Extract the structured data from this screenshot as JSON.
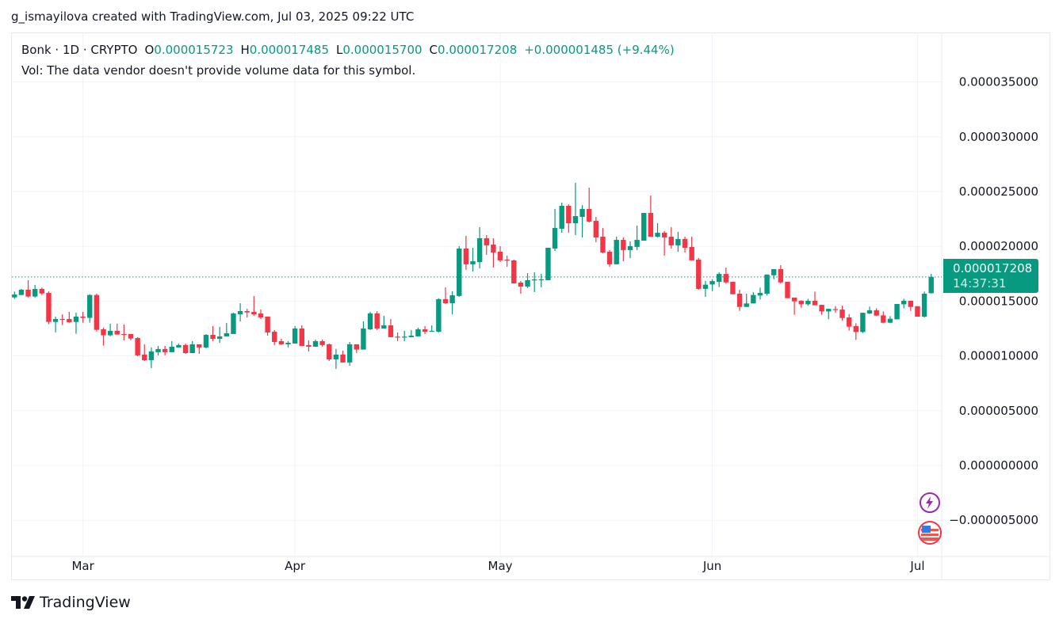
{
  "credit": "g_ismayilova created with TradingView.com, Jul 03, 2025 09:22 UTC",
  "legend": {
    "symbol": "Bonk · 1D · CRYPTO",
    "o_label": "O",
    "o": "0.000015723",
    "h_label": "H",
    "h": "0.000017485",
    "l_label": "L",
    "l": "0.000015700",
    "c_label": "C",
    "c": "0.000017208",
    "change": "+0.000001485 (+9.44%)",
    "vol": "Vol: The data vendor doesn't provide volume data for this symbol."
  },
  "price_label": {
    "price": "0.000017208",
    "countdown": "14:37:31"
  },
  "brand": "TradingView",
  "icons": [
    "lightning-icon",
    "us-flag-icon"
  ],
  "colors": {
    "up": "#089981",
    "down": "#f23645",
    "grid": "#f0f3fa",
    "last_line": "#089981"
  },
  "chart_data": {
    "type": "candlestick",
    "title": "Bonk · 1D · CRYPTO",
    "ylim": [
      -8e-06,
      3.9e-05
    ],
    "grid": true,
    "y_ticks": [
      {
        "value": 3.5e-05,
        "label": "0.000035000"
      },
      {
        "value": 3e-05,
        "label": "0.000030000"
      },
      {
        "value": 2.5e-05,
        "label": "0.000025000"
      },
      {
        "value": 2e-05,
        "label": "0.000020000"
      },
      {
        "value": 1.5e-05,
        "label": "0.000015000"
      },
      {
        "value": 1e-05,
        "label": "0.000010000"
      },
      {
        "value": 5e-06,
        "label": "0.000005000"
      },
      {
        "value": 0,
        "label": "0.000000000"
      },
      {
        "value": -5e-06,
        "label": "−0.000005000"
      }
    ],
    "x_ticks": [
      {
        "label": "Mar",
        "index": 10
      },
      {
        "label": "Apr",
        "index": 41
      },
      {
        "label": "May",
        "index": 71
      },
      {
        "label": "Jun",
        "index": 102
      },
      {
        "label": "Jul",
        "index": 132
      }
    ],
    "last_price": 1.7208e-05,
    "candles_ohlc": [
      [
        1.534e-05,
        1.587e-05,
        1.52e-05,
        1.561e-05
      ],
      [
        1.556e-05,
        1.611e-05,
        1.556e-05,
        1.604e-05
      ],
      [
        1.604e-05,
        1.691e-05,
        1.534e-05,
        1.542e-05
      ],
      [
        1.542e-05,
        1.648e-05,
        1.534e-05,
        1.611e-05
      ],
      [
        1.611e-05,
        1.623e-05,
        1.556e-05,
        1.57e-05
      ],
      [
        1.575e-05,
        1.59e-05,
        1.289e-05,
        1.31e-05
      ],
      [
        1.31e-05,
        1.359e-05,
        1.214e-05,
        1.337e-05
      ],
      [
        1.337e-05,
        1.38e-05,
        1.282e-05,
        1.335e-05
      ],
      [
        1.337e-05,
        1.402e-05,
        1.303e-05,
        1.308e-05
      ],
      [
        1.31e-05,
        1.395e-05,
        1.202e-05,
        1.359e-05
      ],
      [
        1.359e-05,
        1.402e-05,
        1.303e-05,
        1.347e-05
      ],
      [
        1.347e-05,
        1.563e-05,
        1.303e-05,
        1.556e-05
      ],
      [
        1.556e-05,
        1.568e-05,
        1.224e-05,
        1.238e-05
      ],
      [
        1.243e-05,
        1.257e-05,
        1.094e-05,
        1.188e-05
      ],
      [
        1.188e-05,
        1.294e-05,
        1.18e-05,
        1.229e-05
      ],
      [
        1.229e-05,
        1.294e-05,
        1.195e-05,
        1.195e-05
      ],
      [
        1.2e-05,
        1.286e-05,
        1.142e-05,
        1.197e-05
      ],
      [
        1.2e-05,
        1.2e-05,
        1.142e-05,
        1.159e-05
      ],
      [
        1.163e-05,
        1.171e-05,
        9.97e-06,
        1.005e-05
      ],
      [
        1.012e-05,
        1.106e-05,
        9.54e-06,
        9.61e-06
      ],
      [
        9.61e-06,
        1.077e-05,
        8.89e-06,
        1.041e-05
      ],
      [
        1.034e-05,
        1.091e-05,
        1.005e-05,
        1.063e-05
      ],
      [
        1.063e-05,
        1.091e-05,
        1.005e-05,
        1.034e-05
      ],
      [
        1.034e-05,
        1.135e-05,
        1.034e-05,
        1.084e-05
      ],
      [
        1.077e-05,
        1.113e-05,
        1.077e-05,
        1.099e-05
      ],
      [
        1.099e-05,
        1.113e-05,
        1.019e-05,
        1.026e-05
      ],
      [
        1.026e-05,
        1.135e-05,
        1.026e-05,
        1.106e-05
      ],
      [
        1.106e-05,
        1.106e-05,
        1.019e-05,
        1.077e-05
      ],
      [
        1.077e-05,
        1.199e-05,
        1.07e-05,
        1.192e-05
      ],
      [
        1.192e-05,
        1.272e-05,
        1.135e-05,
        1.156e-05
      ],
      [
        1.156e-05,
        1.265e-05,
        1.12e-05,
        1.178e-05
      ],
      [
        1.178e-05,
        1.301e-05,
        1.178e-05,
        1.207e-05
      ],
      [
        1.2e-05,
        1.395e-05,
        1.2e-05,
        1.387e-05
      ],
      [
        1.38e-05,
        1.481e-05,
        1.315e-05,
        1.409e-05
      ],
      [
        1.409e-05,
        1.431e-05,
        1.351e-05,
        1.397e-05
      ],
      [
        1.402e-05,
        1.546e-05,
        1.366e-05,
        1.38e-05
      ],
      [
        1.387e-05,
        1.424e-05,
        1.337e-05,
        1.351e-05
      ],
      [
        1.359e-05,
        1.359e-05,
        1.185e-05,
        1.214e-05
      ],
      [
        1.221e-05,
        1.236e-05,
        1.099e-05,
        1.127e-05
      ],
      [
        1.135e-05,
        1.156e-05,
        1.099e-05,
        1.106e-05
      ],
      [
        1.106e-05,
        1.135e-05,
        1.077e-05,
        1.12e-05
      ],
      [
        1.113e-05,
        1.272e-05,
        1.113e-05,
        1.25e-05
      ],
      [
        1.25e-05,
        1.279e-05,
        1.091e-05,
        1.091e-05
      ],
      [
        1.099e-05,
        1.142e-05,
        1.041e-05,
        1.084e-05
      ],
      [
        1.084e-05,
        1.149e-05,
        1.084e-05,
        1.135e-05
      ],
      [
        1.135e-05,
        1.149e-05,
        1.084e-05,
        1.099e-05
      ],
      [
        1.106e-05,
        1.113e-05,
        9.54e-06,
        9.68e-06
      ],
      [
        9.68e-06,
        1.063e-05,
        8.82e-06,
        1.012e-05
      ],
      [
        1.012e-05,
        1.048e-05,
        9.4e-06,
        9.4e-06
      ],
      [
        9.4e-06,
        1.127e-05,
        9.11e-06,
        1.106e-05
      ],
      [
        1.106e-05,
        1.106e-05,
        1.026e-05,
        1.058e-05
      ],
      [
        1.058e-05,
        1.315e-05,
        1.058e-05,
        1.25e-05
      ],
      [
        1.243e-05,
        1.402e-05,
        1.236e-05,
        1.388e-05
      ],
      [
        1.388e-05,
        1.409e-05,
        1.236e-05,
        1.25e-05
      ],
      [
        1.25e-05,
        1.366e-05,
        1.25e-05,
        1.279e-05
      ],
      [
        1.279e-05,
        1.337e-05,
        1.171e-05,
        1.171e-05
      ],
      [
        1.176e-05,
        1.214e-05,
        1.135e-05,
        1.174e-05
      ],
      [
        1.174e-05,
        1.229e-05,
        1.135e-05,
        1.176e-05
      ],
      [
        1.171e-05,
        1.236e-05,
        1.171e-05,
        1.185e-05
      ],
      [
        1.178e-05,
        1.257e-05,
        1.178e-05,
        1.243e-05
      ],
      [
        1.243e-05,
        1.272e-05,
        1.199e-05,
        1.221e-05
      ],
      [
        1.221e-05,
        1.279e-05,
        1.221e-05,
        1.229e-05
      ],
      [
        1.221e-05,
        1.525e-05,
        1.214e-05,
        1.518e-05
      ],
      [
        1.518e-05,
        1.626e-05,
        1.474e-05,
        1.481e-05
      ],
      [
        1.481e-05,
        1.59e-05,
        1.38e-05,
        1.554e-05
      ],
      [
        1.547e-05,
        2.002e-05,
        1.539e-05,
        1.98e-05
      ],
      [
        1.98e-05,
        2.096e-05,
        1.785e-05,
        1.836e-05
      ],
      [
        1.836e-05,
        1.987e-05,
        1.77e-05,
        1.864e-05
      ],
      [
        1.857e-05,
        2.175e-05,
        1.799e-05,
        2.074e-05
      ],
      [
        2.074e-05,
        2.103e-05,
        1.922e-05,
        2.009e-05
      ],
      [
        2.016e-05,
        2.074e-05,
        1.807e-05,
        1.944e-05
      ],
      [
        1.951e-05,
        2.002e-05,
        1.857e-05,
        1.872e-05
      ],
      [
        1.879e-05,
        1.915e-05,
        1.814e-05,
        1.872e-05
      ],
      [
        1.872e-05,
        1.879e-05,
        1.662e-05,
        1.662e-05
      ],
      [
        1.669e-05,
        1.684e-05,
        1.568e-05,
        1.633e-05
      ],
      [
        1.633e-05,
        1.756e-05,
        1.619e-05,
        1.691e-05
      ],
      [
        1.693e-05,
        1.763e-05,
        1.583e-05,
        1.698e-05
      ],
      [
        1.698e-05,
        1.749e-05,
        1.626e-05,
        1.699e-05
      ],
      [
        1.691e-05,
        1.987e-05,
        1.691e-05,
        1.987e-05
      ],
      [
        1.98e-05,
        2.341e-05,
        1.958e-05,
        2.168e-05
      ],
      [
        2.161e-05,
        2.399e-05,
        2.124e-05,
        2.37e-05
      ],
      [
        2.37e-05,
        2.384e-05,
        2.124e-05,
        2.211e-05
      ],
      [
        2.211e-05,
        2.58e-05,
        2.103e-05,
        2.276e-05
      ],
      [
        2.269e-05,
        2.377e-05,
        2.081e-05,
        2.341e-05
      ],
      [
        2.341e-05,
        2.536e-05,
        2.218e-05,
        2.226e-05
      ],
      [
        2.233e-05,
        2.269e-05,
        2.038e-05,
        2.081e-05
      ],
      [
        2.088e-05,
        2.168e-05,
        1.937e-05,
        1.944e-05
      ],
      [
        1.951e-05,
        1.966e-05,
        1.814e-05,
        1.836e-05
      ],
      [
        1.836e-05,
        2.088e-05,
        1.836e-05,
        2.059e-05
      ],
      [
        2.059e-05,
        2.081e-05,
        1.864e-05,
        1.966e-05
      ],
      [
        1.966e-05,
        2.045e-05,
        1.893e-05,
        2.002e-05
      ],
      [
        1.995e-05,
        2.19e-05,
        1.966e-05,
        2.059e-05
      ],
      [
        2.052e-05,
        2.305e-05,
        2.052e-05,
        2.305e-05
      ],
      [
        2.305e-05,
        2.464e-05,
        2.088e-05,
        2.088e-05
      ],
      [
        2.088e-05,
        2.211e-05,
        2.081e-05,
        2.124e-05
      ],
      [
        2.124e-05,
        2.139e-05,
        1.915e-05,
        2.081e-05
      ],
      [
        2.088e-05,
        2.175e-05,
        1.98e-05,
        2.009e-05
      ],
      [
        2.009e-05,
        2.132e-05,
        1.951e-05,
        2.067e-05
      ],
      [
        2.067e-05,
        2.088e-05,
        1.944e-05,
        1.987e-05
      ],
      [
        1.994e-05,
        2.088e-05,
        1.872e-05,
        1.872e-05
      ],
      [
        1.879e-05,
        1.893e-05,
        1.604e-05,
        1.612e-05
      ],
      [
        1.612e-05,
        1.684e-05,
        1.539e-05,
        1.65e-05
      ],
      [
        1.652e-05,
        1.7e-05,
        1.592e-05,
        1.683e-05
      ],
      [
        1.676e-05,
        1.763e-05,
        1.628e-05,
        1.748e-05
      ],
      [
        1.748e-05,
        1.806e-05,
        1.659e-05,
        1.671e-05
      ],
      [
        1.676e-05,
        1.676e-05,
        1.563e-05,
        1.563e-05
      ],
      [
        1.568e-05,
        1.604e-05,
        1.411e-05,
        1.447e-05
      ],
      [
        1.447e-05,
        1.568e-05,
        1.447e-05,
        1.479e-05
      ],
      [
        1.479e-05,
        1.582e-05,
        1.479e-05,
        1.556e-05
      ],
      [
        1.551e-05,
        1.623e-05,
        1.515e-05,
        1.575e-05
      ],
      [
        1.568e-05,
        1.743e-05,
        1.551e-05,
        1.743e-05
      ],
      [
        1.736e-05,
        1.792e-05,
        1.7e-05,
        1.792e-05
      ],
      [
        1.792e-05,
        1.828e-05,
        1.659e-05,
        1.671e-05
      ],
      [
        1.676e-05,
        1.676e-05,
        1.527e-05,
        1.527e-05
      ],
      [
        1.532e-05,
        1.532e-05,
        1.375e-05,
        1.498e-05
      ],
      [
        1.503e-05,
        1.508e-05,
        1.44e-05,
        1.471e-05
      ],
      [
        1.471e-05,
        1.522e-05,
        1.459e-05,
        1.503e-05
      ],
      [
        1.503e-05,
        1.587e-05,
        1.462e-05,
        1.462e-05
      ],
      [
        1.466e-05,
        1.466e-05,
        1.375e-05,
        1.406e-05
      ],
      [
        1.406e-05,
        1.43e-05,
        1.334e-05,
        1.43e-05
      ],
      [
        1.427e-05,
        1.454e-05,
        1.394e-05,
        1.425e-05
      ],
      [
        1.423e-05,
        1.459e-05,
        1.322e-05,
        1.346e-05
      ],
      [
        1.351e-05,
        1.382e-05,
        1.231e-05,
        1.267e-05
      ],
      [
        1.272e-05,
        1.298e-05,
        1.146e-05,
        1.218e-05
      ],
      [
        1.218e-05,
        1.394e-05,
        1.209e-05,
        1.394e-05
      ],
      [
        1.387e-05,
        1.45e-05,
        1.382e-05,
        1.416e-05
      ],
      [
        1.416e-05,
        1.435e-05,
        1.363e-05,
        1.368e-05
      ],
      [
        1.37e-05,
        1.406e-05,
        1.298e-05,
        1.303e-05
      ],
      [
        1.303e-05,
        1.363e-05,
        1.298e-05,
        1.339e-05
      ],
      [
        1.334e-05,
        1.474e-05,
        1.334e-05,
        1.474e-05
      ],
      [
        1.471e-05,
        1.522e-05,
        1.435e-05,
        1.503e-05
      ],
      [
        1.503e-05,
        1.503e-05,
        1.411e-05,
        1.447e-05
      ],
      [
        1.454e-05,
        1.454e-05,
        1.358e-05,
        1.358e-05
      ],
      [
        1.358e-05,
        1.587e-05,
        1.351e-05,
        1.568e-05
      ],
      [
        1.5723e-05,
        1.7485e-05,
        1.57e-05,
        1.7208e-05
      ]
    ]
  }
}
